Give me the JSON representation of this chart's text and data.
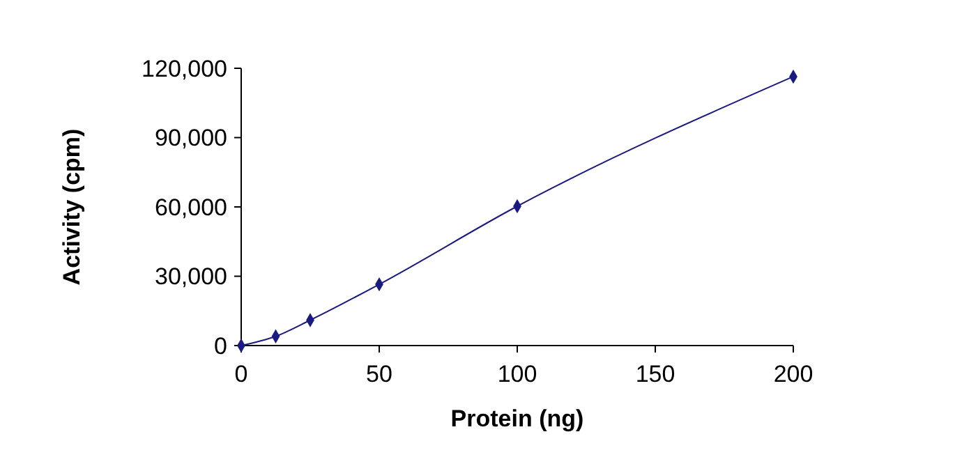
{
  "chart_data": {
    "type": "line",
    "xlabel": "Protein (ng)",
    "ylabel": "Activity (cpm)",
    "x": [
      0,
      12.5,
      25,
      50,
      100,
      200
    ],
    "series": [
      {
        "color": "#1a1a80",
        "values": [
          0,
          4000,
          11000,
          26500,
          60300,
          116400
        ]
      }
    ],
    "xlim": [
      0,
      200
    ],
    "xticks": [
      0,
      50,
      100,
      150,
      200
    ],
    "ylim": [
      0,
      120000
    ],
    "yticks": [
      {
        "value": 0,
        "label": "0"
      },
      {
        "value": 30000,
        "label": "30,000"
      },
      {
        "value": 60000,
        "label": "60,000"
      },
      {
        "value": 90000,
        "label": "90,000"
      },
      {
        "value": 120000,
        "label": "120,000"
      }
    ],
    "marker": "diamond",
    "grid": false
  }
}
